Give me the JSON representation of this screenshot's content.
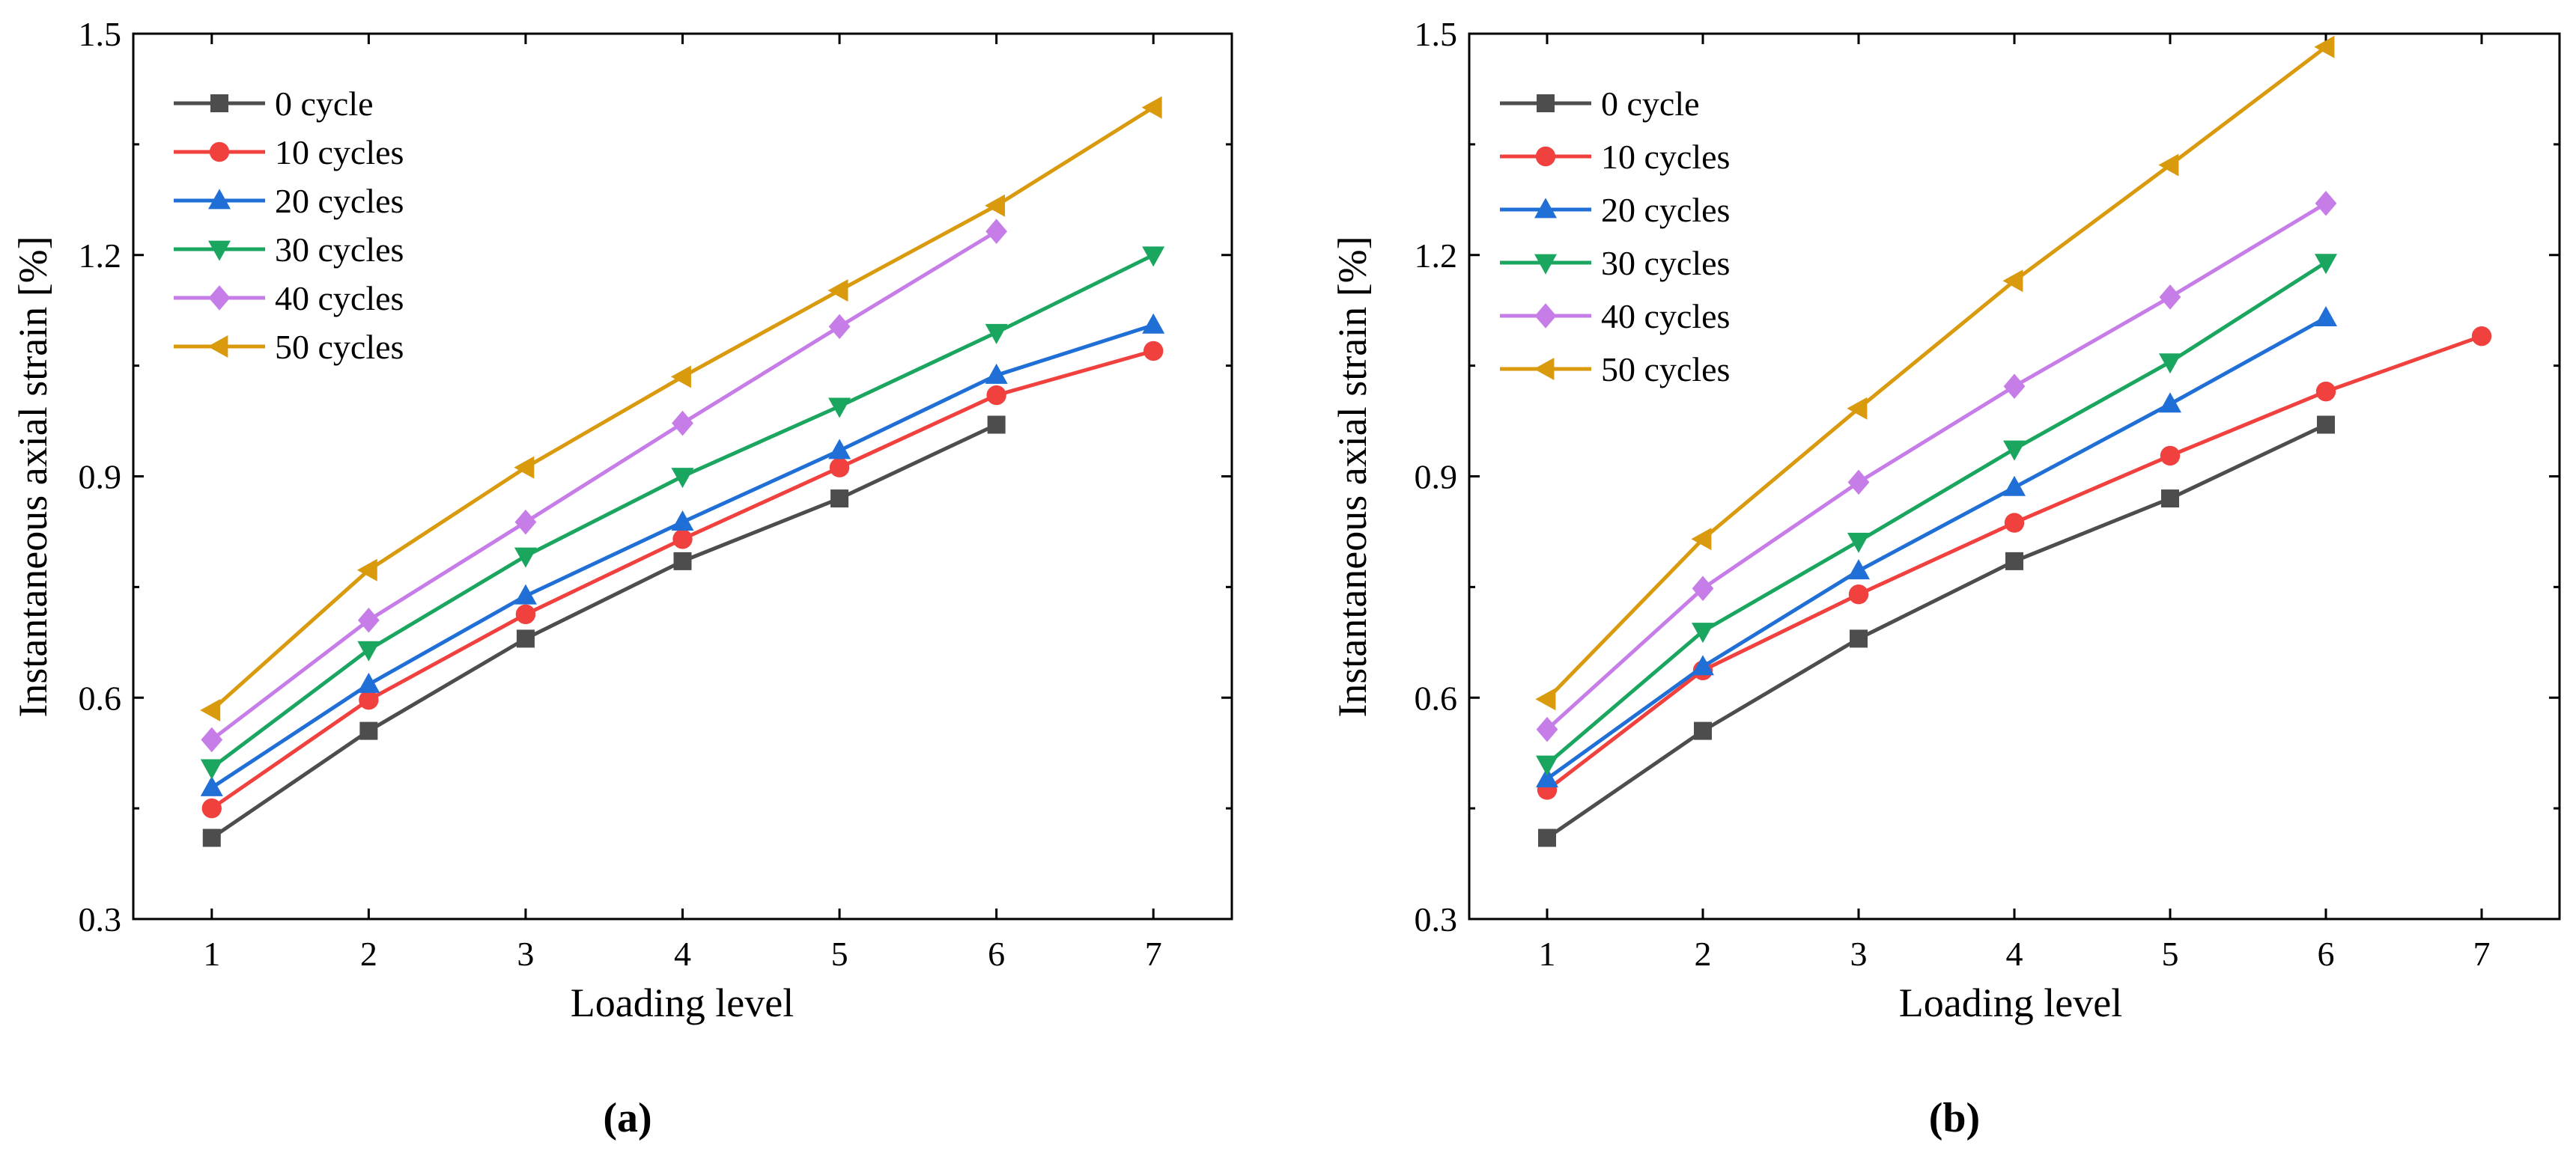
{
  "chart_data": [
    {
      "type": "line",
      "panel_label": "(a)",
      "xlabel": "Loading level",
      "ylabel": "Instantaneous axial strain [%]",
      "xlim": [
        0.5,
        7.5
      ],
      "ylim": [
        0.3,
        1.5
      ],
      "x_ticks": [
        "1",
        "2",
        "3",
        "4",
        "5",
        "6",
        "7"
      ],
      "y_ticks": [
        "0.3",
        "0.6",
        "0.9",
        "1.2",
        "1.5"
      ],
      "grid": false,
      "legend_position": "top-left",
      "series": [
        {
          "name": "0 cycle",
          "color": "#4d4d4d",
          "marker": "square",
          "x": [
            1,
            2,
            3,
            4,
            5,
            6
          ],
          "values": [
            0.41,
            0.555,
            0.68,
            0.785,
            0.87,
            0.97
          ]
        },
        {
          "name": "10 cycles",
          "color": "#f0413f",
          "marker": "circle",
          "x": [
            1,
            2,
            3,
            4,
            5,
            6,
            7
          ],
          "values": [
            0.45,
            0.597,
            0.713,
            0.815,
            0.912,
            1.01,
            1.07
          ]
        },
        {
          "name": "20 cycles",
          "color": "#1f6fd6",
          "marker": "triangle-up",
          "x": [
            1,
            2,
            3,
            4,
            5,
            6,
            7
          ],
          "values": [
            0.478,
            0.618,
            0.738,
            0.838,
            0.935,
            1.037,
            1.105
          ]
        },
        {
          "name": "30 cycles",
          "color": "#1aa65f",
          "marker": "triangle-down",
          "x": [
            1,
            2,
            3,
            4,
            5,
            6,
            7
          ],
          "values": [
            0.505,
            0.665,
            0.792,
            0.9,
            0.995,
            1.095,
            1.2
          ]
        },
        {
          "name": "40 cycles",
          "color": "#c77de8",
          "marker": "diamond",
          "x": [
            1,
            2,
            3,
            4,
            5,
            6
          ],
          "values": [
            0.543,
            0.705,
            0.838,
            0.972,
            1.103,
            1.232
          ]
        },
        {
          "name": "50 cycles",
          "color": "#d99a0d",
          "marker": "triangle-left",
          "x": [
            1,
            2,
            3,
            4,
            5,
            6,
            7
          ],
          "values": [
            0.583,
            0.773,
            0.912,
            1.035,
            1.152,
            1.267,
            1.4
          ]
        }
      ]
    },
    {
      "type": "line",
      "panel_label": "(b)",
      "xlabel": "Loading level",
      "ylabel": "Instantaneous axial strain [%]",
      "xlim": [
        0.5,
        7.5
      ],
      "ylim": [
        0.3,
        1.5
      ],
      "x_ticks": [
        "1",
        "2",
        "3",
        "4",
        "5",
        "6",
        "7"
      ],
      "y_ticks": [
        "0.3",
        "0.6",
        "0.9",
        "1.2",
        "1.5"
      ],
      "grid": false,
      "legend_position": "top-left",
      "series": [
        {
          "name": "0 cycle",
          "color": "#4d4d4d",
          "marker": "square",
          "x": [
            1,
            2,
            3,
            4,
            5,
            6
          ],
          "values": [
            0.41,
            0.555,
            0.68,
            0.785,
            0.87,
            0.97
          ]
        },
        {
          "name": "10 cycles",
          "color": "#f0413f",
          "marker": "circle",
          "x": [
            1,
            2,
            3,
            4,
            5,
            6,
            7
          ],
          "values": [
            0.475,
            0.637,
            0.74,
            0.837,
            0.928,
            1.015,
            1.09
          ]
        },
        {
          "name": "20 cycles",
          "color": "#1f6fd6",
          "marker": "triangle-up",
          "x": [
            1,
            2,
            3,
            4,
            5,
            6
          ],
          "values": [
            0.49,
            0.642,
            0.772,
            0.885,
            0.998,
            1.115
          ]
        },
        {
          "name": "30 cycles",
          "color": "#1aa65f",
          "marker": "triangle-down",
          "x": [
            1,
            2,
            3,
            4,
            5,
            6
          ],
          "values": [
            0.51,
            0.69,
            0.812,
            0.937,
            1.055,
            1.19
          ]
        },
        {
          "name": "40 cycles",
          "color": "#c77de8",
          "marker": "diamond",
          "x": [
            1,
            2,
            3,
            4,
            5,
            6
          ],
          "values": [
            0.557,
            0.748,
            0.892,
            1.022,
            1.143,
            1.27
          ]
        },
        {
          "name": "50 cycles",
          "color": "#d99a0d",
          "marker": "triangle-left",
          "x": [
            1,
            2,
            3,
            4,
            5,
            6
          ],
          "values": [
            0.598,
            0.815,
            0.992,
            1.165,
            1.322,
            1.482
          ]
        }
      ]
    }
  ]
}
